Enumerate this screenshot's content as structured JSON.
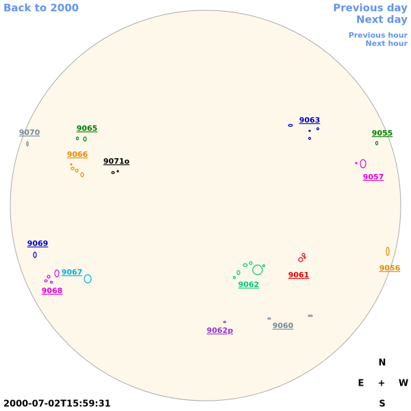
{
  "nav": {
    "back": "Back to 2000",
    "previous_day": "Previous day",
    "next_day": "Next day",
    "previous_hour": "Previous hour",
    "next_hour": "Next hour"
  },
  "timestamp": "2000-07-02T15:59:31",
  "compass": {
    "north": "N",
    "east": "E",
    "center": "+",
    "west": "W",
    "south": "S"
  },
  "regions": [
    {
      "label": "9070",
      "color": "#778899"
    },
    {
      "label": "9065",
      "color": "#008000"
    },
    {
      "label": "9066",
      "color": "#e68a00"
    },
    {
      "label": "9071o",
      "color": "#000000"
    },
    {
      "label": "9063",
      "color": "#0000cd"
    },
    {
      "label": "9055",
      "color": "#008000"
    },
    {
      "label": "9057",
      "color": "#e000e0"
    },
    {
      "label": "9069",
      "color": "#0000cd"
    },
    {
      "label": "9067",
      "color": "#00b0e0"
    },
    {
      "label": "9068",
      "color": "#e000e0"
    },
    {
      "label": "9062",
      "color": "#00c87a"
    },
    {
      "label": "9061",
      "color": "#e00000"
    },
    {
      "label": "9056",
      "color": "#e68a00"
    },
    {
      "label": "9060",
      "color": "#778899"
    },
    {
      "label": "9062p",
      "color": "#9932cc"
    }
  ]
}
